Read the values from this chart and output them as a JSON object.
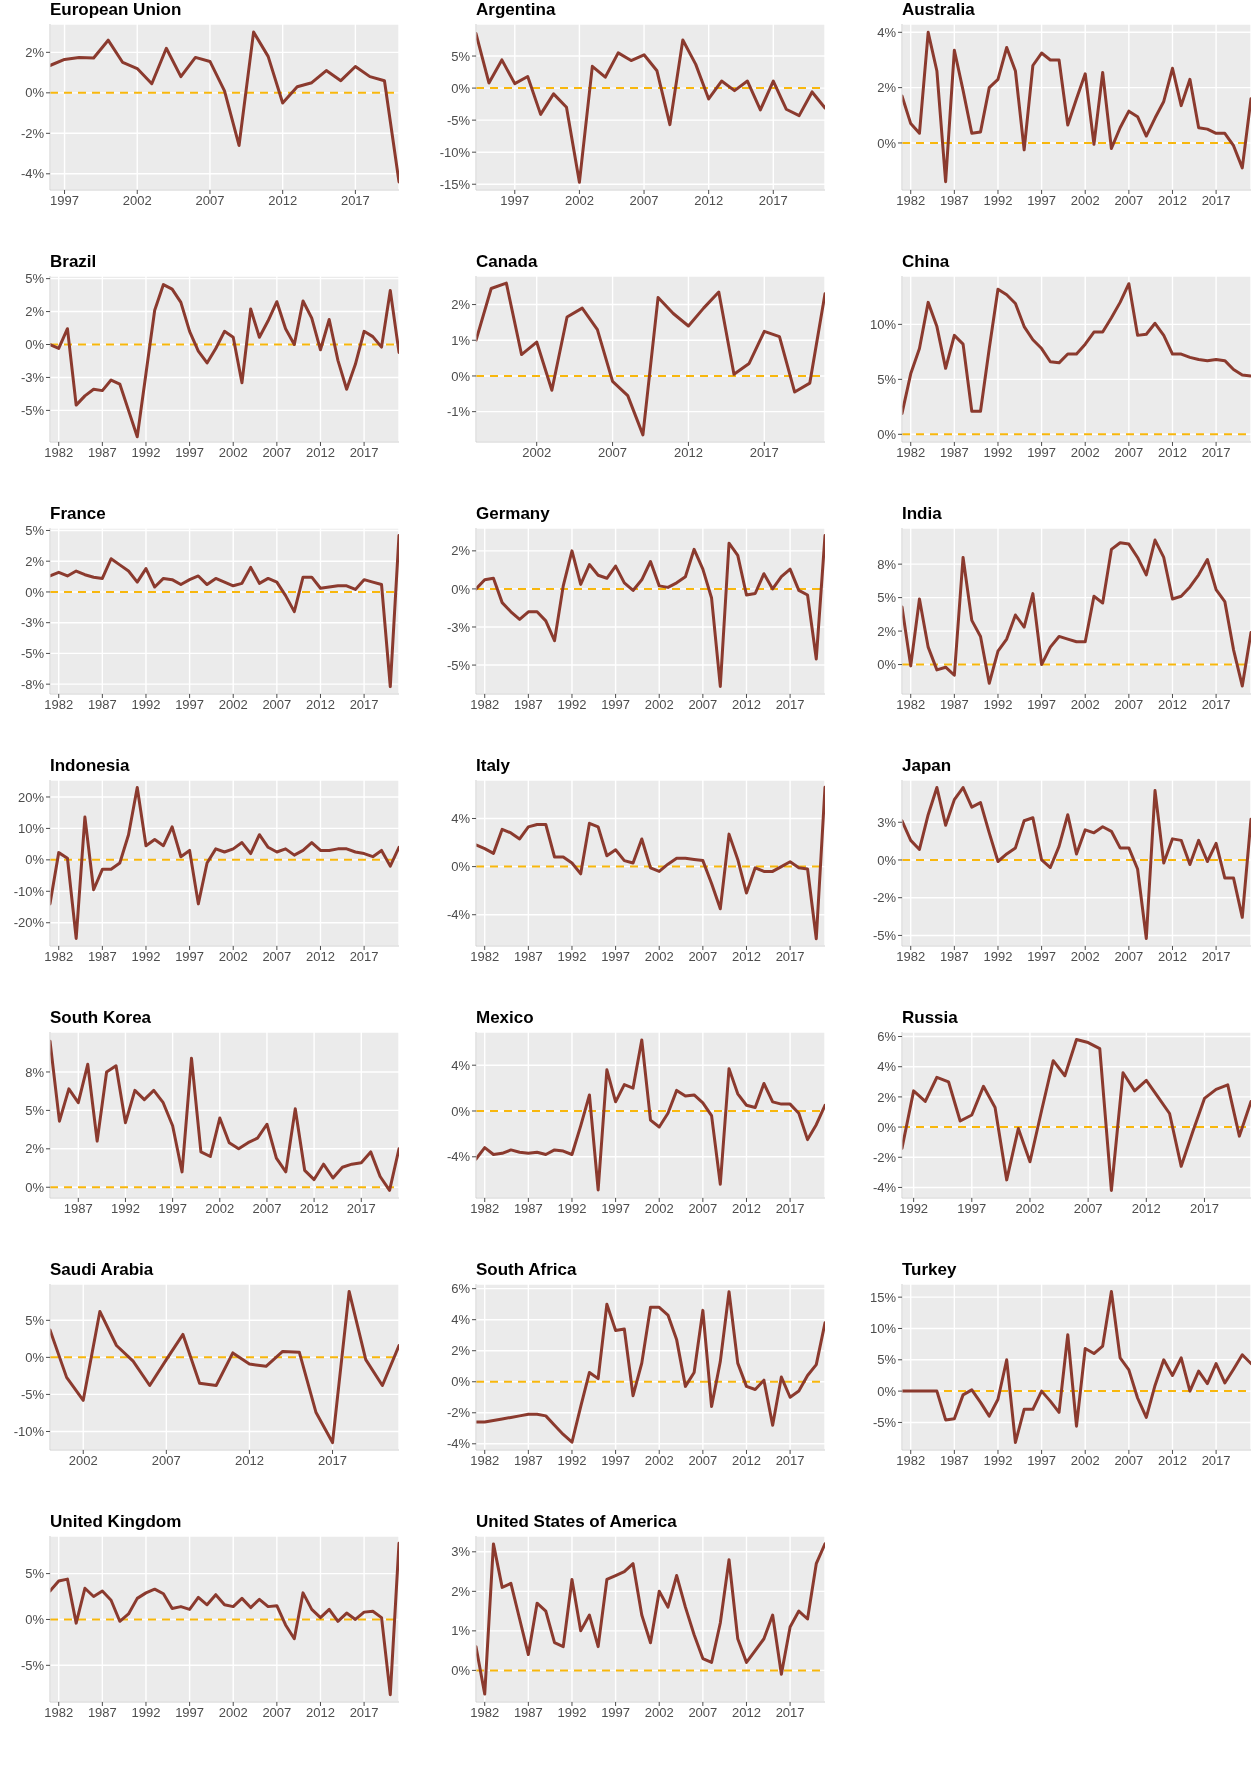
{
  "chart_data": [
    {
      "type": "line",
      "title": "European Union",
      "x": [
        1996,
        1997,
        1998,
        1999,
        2000,
        2001,
        2002,
        2003,
        2004,
        2005,
        2006,
        2007,
        2008,
        2009,
        2010,
        2011,
        2012,
        2013,
        2014,
        2015,
        2016,
        2017,
        2018,
        2019,
        2020
      ],
      "values": [
        1.35,
        1.65,
        1.75,
        1.72,
        2.6,
        1.5,
        1.2,
        0.45,
        2.2,
        0.8,
        1.75,
        1.55,
        0.1,
        -2.6,
        3.0,
        1.8,
        -0.5,
        0.3,
        0.5,
        1.1,
        0.6,
        1.3,
        0.8,
        0.6,
        -4.4
      ],
      "color": "#8b3a2e",
      "xlim": [
        1996,
        2020
      ],
      "xticks": [
        1997,
        2002,
        2007,
        2012,
        2017
      ],
      "ylim": [
        -4.8,
        3.4
      ],
      "yticks": [
        {
          "value": 2,
          "label": "2%"
        },
        {
          "value": 0,
          "label": "0%"
        },
        {
          "value": -2,
          "label": "-2%"
        },
        {
          "value": -4,
          "label": "-4%"
        }
      ],
      "grid": true,
      "ref_lines": [
        {
          "axis": "y",
          "value": 0,
          "color": "#f8b70d",
          "line_style": "dashed"
        }
      ]
    },
    {
      "type": "line",
      "title": "Argentina",
      "x": [
        1994,
        1995,
        1996,
        1997,
        1998,
        1999,
        2000,
        2001,
        2002,
        2003,
        2004,
        2005,
        2006,
        2007,
        2008,
        2009,
        2010,
        2011,
        2012,
        2013,
        2014,
        2015,
        2016,
        2017,
        2018,
        2019,
        2020,
        2021
      ],
      "values": [
        8.5,
        0.8,
        4.4,
        0.7,
        1.8,
        -4.1,
        -0.9,
        -3.0,
        -14.7,
        3.4,
        1.7,
        5.5,
        4.3,
        5.2,
        2.7,
        -5.7,
        7.5,
        3.7,
        -1.7,
        1.1,
        -0.4,
        1.1,
        -3.4,
        1.1,
        -3.3,
        -4.3,
        -0.6,
        -3.1
      ],
      "color": "#8b3a2e",
      "xlim": [
        1994,
        2021
      ],
      "xticks": [
        1997,
        2002,
        2007,
        2012,
        2017
      ],
      "ylim": [
        -15.9,
        10
      ],
      "yticks": [
        {
          "value": 5,
          "label": "5%"
        },
        {
          "value": 0,
          "label": "0%"
        },
        {
          "value": -5,
          "label": "-5%"
        },
        {
          "value": -10,
          "label": "-10%"
        },
        {
          "value": -15,
          "label": "-15%"
        }
      ],
      "grid": true,
      "ref_lines": [
        {
          "axis": "y",
          "value": 0,
          "color": "#f8b70d",
          "line_style": "dashed"
        }
      ]
    },
    {
      "type": "line",
      "title": "Australia",
      "x": [
        1981,
        1982,
        1983,
        1984,
        1985,
        1986,
        1987,
        1988,
        1989,
        1990,
        1991,
        1992,
        1993,
        1994,
        1995,
        1996,
        1997,
        1998,
        1999,
        2000,
        2001,
        2002,
        2003,
        2004,
        2005,
        2006,
        2007,
        2008,
        2009,
        2010,
        2011,
        2012,
        2013,
        2014,
        2015,
        2016,
        2017,
        2018,
        2019,
        2020,
        2021
      ],
      "values": [
        1.7,
        0.7,
        0.35,
        4.0,
        2.6,
        -1.4,
        3.35,
        1.9,
        0.35,
        0.4,
        2.0,
        2.3,
        3.45,
        2.6,
        -0.25,
        2.8,
        3.25,
        3.0,
        3.0,
        0.65,
        1.6,
        2.5,
        -0.05,
        2.55,
        -0.2,
        0.55,
        1.15,
        0.95,
        0.25,
        0.9,
        1.5,
        2.7,
        1.35,
        2.3,
        0.55,
        0.5,
        0.35,
        0.35,
        -0.1,
        -0.9,
        1.6
      ],
      "color": "#8b3a2e",
      "xlim": [
        1981,
        2021
      ],
      "xticks": [
        1982,
        1987,
        1992,
        1997,
        2002,
        2007,
        2012,
        2017
      ],
      "ylim": [
        -1.7,
        4.3
      ],
      "yticks": [
        {
          "value": 4,
          "label": "4%"
        },
        {
          "value": 2,
          "label": "2%"
        },
        {
          "value": 0,
          "label": "0%"
        }
      ],
      "grid": true,
      "ref_lines": [
        {
          "axis": "y",
          "value": 0,
          "color": "#f8b70d",
          "line_style": "dashed"
        }
      ]
    },
    {
      "type": "line",
      "title": "Brazil",
      "x": [
        1981,
        1982,
        1983,
        1984,
        1985,
        1986,
        1987,
        1988,
        1989,
        1990,
        1991,
        1992,
        1993,
        1994,
        1995,
        1996,
        1997,
        1998,
        1999,
        2000,
        2001,
        2002,
        2003,
        2004,
        2005,
        2006,
        2007,
        2008,
        2009,
        2010,
        2011,
        2012,
        2013,
        2014,
        2015,
        2016,
        2017,
        2018,
        2019,
        2020,
        2021
      ],
      "values": [
        0,
        -0.3,
        1.2,
        -4.6,
        -3.9,
        -3.4,
        -3.5,
        -2.7,
        -3.0,
        -5.0,
        -7.0,
        -2.2,
        2.6,
        4.55,
        4.2,
        3.2,
        1.0,
        -0.5,
        -1.4,
        -0.3,
        1.0,
        0.55,
        -2.9,
        2.7,
        0.55,
        1.8,
        3.25,
        1.2,
        0,
        3.3,
        2.0,
        -0.4,
        1.9,
        -1.2,
        -3.4,
        -1.5,
        1.0,
        0.6,
        -0.2,
        4.1,
        -0.6
      ],
      "color": "#8b3a2e",
      "xlim": [
        1981,
        2021
      ],
      "xticks": [
        1982,
        1987,
        1992,
        1997,
        2002,
        2007,
        2012,
        2017
      ],
      "ylim": [
        -7.4,
        5.2
      ],
      "yticks": [
        {
          "value": 5,
          "label": "5%"
        },
        {
          "value": 2.5,
          "label": "2%"
        },
        {
          "value": 0,
          "label": "0%"
        },
        {
          "value": -2.5,
          "label": "-3%"
        },
        {
          "value": -5,
          "label": "-5%"
        }
      ],
      "grid": true,
      "ref_lines": [
        {
          "axis": "y",
          "value": 0,
          "color": "#f8b70d",
          "line_style": "dashed"
        }
      ]
    },
    {
      "type": "line",
      "title": "Canada",
      "x": [
        1998,
        1999,
        2000,
        2001,
        2002,
        2003,
        2004,
        2005,
        2006,
        2007,
        2008,
        2009,
        2010,
        2011,
        2012,
        2013,
        2014,
        2015,
        2016,
        2017,
        2018,
        2019,
        2020,
        2021
      ],
      "values": [
        1.0,
        2.45,
        2.6,
        0.6,
        0.95,
        -0.4,
        1.65,
        1.9,
        1.3,
        -0.15,
        -0.55,
        -1.65,
        2.2,
        1.75,
        1.4,
        1.9,
        2.35,
        0.05,
        0.35,
        1.25,
        1.1,
        -0.45,
        -0.2,
        2.3
      ],
      "color": "#8b3a2e",
      "xlim": [
        1998,
        2021
      ],
      "xticks": [
        2002,
        2007,
        2012,
        2017
      ],
      "ylim": [
        -1.85,
        2.8
      ],
      "yticks": [
        {
          "value": 2,
          "label": "2%"
        },
        {
          "value": 1,
          "label": "1%"
        },
        {
          "value": 0,
          "label": "0%"
        },
        {
          "value": -1,
          "label": "-1%"
        }
      ],
      "grid": true,
      "ref_lines": [
        {
          "axis": "y",
          "value": 0,
          "color": "#f8b70d",
          "line_style": "dashed"
        }
      ]
    },
    {
      "type": "line",
      "title": "China",
      "x": [
        1981,
        1982,
        1983,
        1984,
        1985,
        1986,
        1987,
        1988,
        1989,
        1990,
        1991,
        1992,
        1993,
        1994,
        1995,
        1996,
        1997,
        1998,
        1999,
        2000,
        2001,
        2002,
        2003,
        2004,
        2005,
        2006,
        2007,
        2008,
        2009,
        2010,
        2011,
        2012,
        2013,
        2014,
        2015,
        2016,
        2017,
        2018,
        2019,
        2020,
        2021
      ],
      "values": [
        1.9,
        5.5,
        7.8,
        12.0,
        9.8,
        6.0,
        9.0,
        8.2,
        2.1,
        2.1,
        7.8,
        13.2,
        12.7,
        11.9,
        9.8,
        8.6,
        7.8,
        6.6,
        6.5,
        7.3,
        7.3,
        8.2,
        9.3,
        9.3,
        10.6,
        12.0,
        13.7,
        9.0,
        9.1,
        10.1,
        9.0,
        7.3,
        7.3,
        7.0,
        6.8,
        6.7,
        6.8,
        6.7,
        5.9,
        5.4,
        5.3
      ],
      "color": "#8b3a2e",
      "xlim": [
        1981,
        2021
      ],
      "xticks": [
        1982,
        1987,
        1992,
        1997,
        2002,
        2007,
        2012,
        2017
      ],
      "ylim": [
        -0.7,
        14.4
      ],
      "yticks": [
        {
          "value": 10,
          "label": "10%"
        },
        {
          "value": 5,
          "label": "5%"
        },
        {
          "value": 0,
          "label": "0%"
        }
      ],
      "grid": true,
      "ref_lines": [
        {
          "axis": "y",
          "value": 0,
          "color": "#f8b70d",
          "line_style": "dashed"
        }
      ]
    },
    {
      "type": "line",
      "title": "France",
      "x": [
        1981,
        1982,
        1983,
        1984,
        1985,
        1986,
        1987,
        1988,
        1989,
        1990,
        1991,
        1992,
        1993,
        1994,
        1995,
        1996,
        1997,
        1998,
        1999,
        2000,
        2001,
        2002,
        2003,
        2004,
        2005,
        2006,
        2007,
        2008,
        2009,
        2010,
        2011,
        2012,
        2013,
        2014,
        2015,
        2016,
        2017,
        2018,
        2019,
        2020,
        2021
      ],
      "values": [
        1.3,
        1.6,
        1.3,
        1.7,
        1.4,
        1.2,
        1.1,
        2.7,
        2.2,
        1.7,
        0.8,
        1.9,
        0.4,
        1.1,
        1.0,
        0.6,
        1.0,
        1.3,
        0.6,
        1.1,
        0.8,
        0.5,
        0.7,
        2.0,
        0.7,
        1.1,
        0.8,
        -0.3,
        -1.6,
        1.2,
        1.2,
        0.3,
        0.4,
        0.5,
        0.5,
        0.2,
        1.0,
        0.8,
        0.6,
        -7.7,
        4.6
      ],
      "color": "#8b3a2e",
      "xlim": [
        1981,
        2021
      ],
      "xticks": [
        1982,
        1987,
        1992,
        1997,
        2002,
        2007,
        2012,
        2017
      ],
      "ylim": [
        -8.3,
        5.2
      ],
      "yticks": [
        {
          "value": 5,
          "label": "5%"
        },
        {
          "value": 2.5,
          "label": "2%"
        },
        {
          "value": 0,
          "label": "0%"
        },
        {
          "value": -2.5,
          "label": "-3%"
        },
        {
          "value": -5,
          "label": "-5%"
        },
        {
          "value": -7.5,
          "label": "-8%"
        }
      ],
      "grid": true,
      "ref_lines": [
        {
          "axis": "y",
          "value": 0,
          "color": "#f8b70d",
          "line_style": "dashed"
        }
      ]
    },
    {
      "type": "line",
      "title": "Germany",
      "x": [
        1981,
        1982,
        1983,
        1984,
        1985,
        1986,
        1987,
        1988,
        1989,
        1990,
        1991,
        1992,
        1993,
        1994,
        1995,
        1996,
        1997,
        1998,
        1999,
        2000,
        2001,
        2002,
        2003,
        2004,
        2005,
        2006,
        2007,
        2008,
        2009,
        2010,
        2011,
        2012,
        2013,
        2014,
        2015,
        2016,
        2017,
        2018,
        2019,
        2020,
        2021
      ],
      "values": [
        0.0,
        0.6,
        0.7,
        -0.9,
        -1.5,
        -2.0,
        -1.5,
        -1.5,
        -2.1,
        -3.4,
        0.2,
        2.5,
        0.3,
        1.6,
        0.9,
        0.7,
        1.5,
        0.4,
        -0.1,
        0.6,
        1.8,
        0.2,
        0.1,
        0.4,
        0.8,
        2.6,
        1.3,
        -0.6,
        -6.4,
        3.0,
        2.2,
        -0.4,
        -0.3,
        1.0,
        0.0,
        0.8,
        1.3,
        -0.1,
        -0.4,
        -4.6,
        3.5
      ],
      "color": "#8b3a2e",
      "xlim": [
        1981,
        2021
      ],
      "xticks": [
        1982,
        1987,
        1992,
        1997,
        2002,
        2007,
        2012,
        2017
      ],
      "ylim": [
        -6.9,
        4.0
      ],
      "yticks": [
        {
          "value": 2.5,
          "label": "2%"
        },
        {
          "value": 0,
          "label": "0%"
        },
        {
          "value": -2.5,
          "label": "-3%"
        },
        {
          "value": -5,
          "label": "-5%"
        }
      ],
      "grid": true,
      "ref_lines": [
        {
          "axis": "y",
          "value": 0,
          "color": "#f8b70d",
          "line_style": "dashed"
        }
      ]
    },
    {
      "type": "line",
      "title": "India",
      "x": [
        1981,
        1982,
        1983,
        1984,
        1985,
        1986,
        1987,
        1988,
        1989,
        1990,
        1991,
        1992,
        1993,
        1994,
        1995,
        1996,
        1997,
        1998,
        1999,
        2000,
        2001,
        2002,
        2003,
        2004,
        2005,
        2006,
        2007,
        2008,
        2009,
        2010,
        2011,
        2012,
        2013,
        2014,
        2015,
        2016,
        2017,
        2018,
        2019,
        2020,
        2021
      ],
      "values": [
        4.3,
        -0.1,
        4.9,
        1.3,
        -0.4,
        -0.2,
        -0.8,
        8.0,
        3.3,
        2.1,
        -1.4,
        1.0,
        1.9,
        3.7,
        2.8,
        5.3,
        0.0,
        1.3,
        2.1,
        1.9,
        1.7,
        1.7,
        5.1,
        4.6,
        8.6,
        9.1,
        9.0,
        8.0,
        6.7,
        9.3,
        8.0,
        4.9,
        5.1,
        5.8,
        6.7,
        7.85,
        5.6,
        4.7,
        1.1,
        -1.6,
        2.4
      ],
      "color": "#8b3a2e",
      "xlim": [
        1981,
        2021
      ],
      "xticks": [
        1982,
        1987,
        1992,
        1997,
        2002,
        2007,
        2012,
        2017
      ],
      "ylim": [
        -2.2,
        10.2
      ],
      "yticks": [
        {
          "value": 7.5,
          "label": "8%"
        },
        {
          "value": 5,
          "label": "5%"
        },
        {
          "value": 2.5,
          "label": "2%"
        },
        {
          "value": 0,
          "label": "0%"
        }
      ],
      "grid": true,
      "ref_lines": [
        {
          "axis": "y",
          "value": 0,
          "color": "#f8b70d",
          "line_style": "dashed"
        }
      ]
    },
    {
      "type": "line",
      "title": "Indonesia",
      "x": [
        1981,
        1982,
        1983,
        1984,
        1985,
        1986,
        1987,
        1988,
        1989,
        1990,
        1991,
        1992,
        1993,
        1994,
        1995,
        1996,
        1997,
        1998,
        1999,
        2000,
        2001,
        2002,
        2003,
        2004,
        2005,
        2006,
        2007,
        2008,
        2009,
        2010,
        2011,
        2012,
        2013,
        2014,
        2015,
        2016,
        2017,
        2018,
        2019,
        2020,
        2021
      ],
      "values": [
        -14,
        2.3,
        0.5,
        -25,
        13.6,
        -9.5,
        -3,
        -3,
        -1,
        8,
        23,
        4.5,
        6.5,
        4.5,
        10.5,
        1,
        3,
        -14,
        -1,
        3.5,
        2.5,
        3.5,
        5.5,
        2,
        8,
        4,
        2.5,
        3.5,
        1.5,
        3,
        5.5,
        3,
        3,
        3.5,
        3.5,
        2.5,
        2,
        1,
        3,
        -2,
        4
      ],
      "color": "#8b3a2e",
      "xlim": [
        1981,
        2021
      ],
      "xticks": [
        1982,
        1987,
        1992,
        1997,
        2002,
        2007,
        2012,
        2017
      ],
      "ylim": [
        -27.4,
        25.4
      ],
      "yticks": [
        {
          "value": 20,
          "label": "20%"
        },
        {
          "value": 10,
          "label": "10%"
        },
        {
          "value": 0,
          "label": "0%"
        },
        {
          "value": -10,
          "label": "-10%"
        },
        {
          "value": -20,
          "label": "-20%"
        }
      ],
      "grid": true,
      "ref_lines": [
        {
          "axis": "y",
          "value": 0,
          "color": "#f8b70d",
          "line_style": "dashed"
        }
      ]
    },
    {
      "type": "line",
      "title": "Italy",
      "x": [
        1981,
        1982,
        1983,
        1984,
        1985,
        1986,
        1987,
        1988,
        1989,
        1990,
        1991,
        1992,
        1993,
        1994,
        1995,
        1996,
        1997,
        1998,
        1999,
        2000,
        2001,
        2002,
        2003,
        2004,
        2005,
        2006,
        2007,
        2008,
        2009,
        2010,
        2011,
        2012,
        2013,
        2014,
        2015,
        2016,
        2017,
        2018,
        2019,
        2020,
        2021
      ],
      "values": [
        1.8,
        1.5,
        1.1,
        3.1,
        2.8,
        2.3,
        3.3,
        3.5,
        3.5,
        0.8,
        0.8,
        0.3,
        -0.6,
        3.6,
        3.3,
        0.9,
        1.4,
        0.5,
        0.3,
        2.3,
        -0.1,
        -0.4,
        0.2,
        0.7,
        0.7,
        0.6,
        0.5,
        -1.4,
        -3.5,
        2.7,
        0.6,
        -2.2,
        -0.1,
        -0.4,
        -0.4,
        0.0,
        0.4,
        -0.1,
        -0.2,
        -6.0,
        6.6
      ],
      "color": "#8b3a2e",
      "xlim": [
        1981,
        2021
      ],
      "xticks": [
        1982,
        1987,
        1992,
        1997,
        2002,
        2007,
        2012,
        2017
      ],
      "ylim": [
        -6.6,
        7.2
      ],
      "yticks": [
        {
          "value": 4,
          "label": "4%"
        },
        {
          "value": 0,
          "label": "0%"
        },
        {
          "value": -4,
          "label": "-4%"
        }
      ],
      "grid": true,
      "ref_lines": [
        {
          "axis": "y",
          "value": 0,
          "color": "#f8b70d",
          "line_style": "dashed"
        }
      ]
    },
    {
      "type": "line",
      "title": "Japan",
      "x": [
        1981,
        1982,
        1983,
        1984,
        1985,
        1986,
        1987,
        1988,
        1989,
        1990,
        1991,
        1992,
        1993,
        1994,
        1995,
        1996,
        1997,
        1998,
        1999,
        2000,
        2001,
        2002,
        2003,
        2004,
        2005,
        2006,
        2007,
        2008,
        2009,
        2010,
        2011,
        2012,
        2013,
        2014,
        2015,
        2016,
        2017,
        2018,
        2019,
        2020,
        2021
      ],
      "values": [
        2.6,
        1.3,
        0.7,
        3.0,
        4.8,
        2.3,
        4.0,
        4.8,
        3.5,
        3.8,
        1.8,
        -0.1,
        0.4,
        0.8,
        2.6,
        2.8,
        0.0,
        -0.5,
        0.9,
        3.0,
        0.4,
        2.0,
        1.8,
        2.2,
        1.9,
        0.8,
        0.8,
        -0.6,
        -5.2,
        4.6,
        -0.2,
        1.4,
        1.3,
        -0.3,
        1.3,
        -0.1,
        1.1,
        -1.2,
        -1.2,
        -3.8,
        2.7
      ],
      "color": "#8b3a2e",
      "xlim": [
        1981,
        2021
      ],
      "xticks": [
        1982,
        1987,
        1992,
        1997,
        2002,
        2007,
        2012,
        2017
      ],
      "ylim": [
        -5.7,
        5.3
      ],
      "yticks": [
        {
          "value": 2.5,
          "label": "3%"
        },
        {
          "value": 0,
          "label": "0%"
        },
        {
          "value": -2.5,
          "label": "-2%"
        },
        {
          "value": -5,
          "label": "-5%"
        }
      ],
      "grid": true,
      "ref_lines": [
        {
          "axis": "y",
          "value": 0,
          "color": "#f8b70d",
          "line_style": "dashed"
        }
      ]
    },
    {
      "type": "line",
      "title": "South Korea",
      "x": [
        1984,
        1985,
        1986,
        1987,
        1988,
        1989,
        1990,
        1991,
        1992,
        1993,
        1994,
        1995,
        1996,
        1997,
        1998,
        1999,
        2000,
        2001,
        2002,
        2003,
        2004,
        2005,
        2006,
        2007,
        2008,
        2009,
        2010,
        2011,
        2012,
        2013,
        2014,
        2015,
        2016,
        2017,
        2018,
        2019,
        2020,
        2021
      ],
      "values": [
        9.5,
        4.3,
        6.4,
        5.5,
        8.0,
        3.0,
        7.5,
        7.9,
        4.2,
        6.3,
        5.7,
        6.3,
        5.5,
        4.0,
        1.0,
        8.4,
        2.3,
        2.0,
        4.5,
        2.9,
        2.5,
        2.9,
        3.2,
        4.1,
        1.9,
        1.0,
        5.1,
        1.1,
        0.5,
        1.5,
        0.6,
        1.3,
        1.5,
        1.6,
        2.3,
        0.7,
        -0.2,
        2.5
      ],
      "color": "#8b3a2e",
      "xlim": [
        1984,
        2021
      ],
      "xticks": [
        1987,
        1992,
        1997,
        2002,
        2007,
        2012,
        2017
      ],
      "ylim": [
        -0.7,
        10.1
      ],
      "yticks": [
        {
          "value": 7.5,
          "label": "8%"
        },
        {
          "value": 5,
          "label": "5%"
        },
        {
          "value": 2.5,
          "label": "2%"
        },
        {
          "value": 0,
          "label": "0%"
        }
      ],
      "grid": true,
      "ref_lines": [
        {
          "axis": "y",
          "value": 0,
          "color": "#f8b70d",
          "line_style": "dashed"
        }
      ]
    },
    {
      "type": "line",
      "title": "Mexico",
      "x": [
        1981,
        1982,
        1983,
        1984,
        1985,
        1986,
        1987,
        1988,
        1989,
        1990,
        1991,
        1992,
        1993,
        1994,
        1995,
        1996,
        1997,
        1998,
        1999,
        2000,
        2001,
        2002,
        2003,
        2004,
        2005,
        2006,
        2007,
        2008,
        2009,
        2010,
        2011,
        2012,
        2013,
        2014,
        2015,
        2016,
        2017,
        2018,
        2019,
        2020,
        2021
      ],
      "values": [
        -4.2,
        -3.2,
        -3.8,
        -3.7,
        -3.4,
        -3.6,
        -3.7,
        -3.6,
        -3.8,
        -3.4,
        -3.5,
        -3.8,
        -1.3,
        1.4,
        -6.9,
        3.6,
        0.8,
        2.3,
        2.0,
        6.2,
        -0.8,
        -1.4,
        -0.2,
        1.8,
        1.3,
        1.4,
        0.7,
        -0.4,
        -6.4,
        3.7,
        1.5,
        0.5,
        0.3,
        2.4,
        0.8,
        0.6,
        0.6,
        -0.2,
        -2.5,
        -1.2,
        0.5
      ],
      "color": "#8b3a2e",
      "xlim": [
        1981,
        2021
      ],
      "xticks": [
        1982,
        1987,
        1992,
        1997,
        2002,
        2007,
        2012,
        2017
      ],
      "ylim": [
        -7.6,
        6.9
      ],
      "yticks": [
        {
          "value": 4,
          "label": "4%"
        },
        {
          "value": 0,
          "label": "0%"
        },
        {
          "value": -4,
          "label": "-4%"
        }
      ],
      "grid": true,
      "ref_lines": [
        {
          "axis": "y",
          "value": 0,
          "color": "#f8b70d",
          "line_style": "dashed"
        }
      ]
    },
    {
      "type": "line",
      "title": "Russia",
      "x": [
        1991,
        1992,
        1993,
        1994,
        1995,
        1996,
        1997,
        1998,
        1999,
        2000,
        2001,
        2002,
        2003,
        2004,
        2005,
        2006,
        2007,
        2008,
        2009,
        2010,
        2011,
        2012,
        2013,
        2014,
        2015,
        2016,
        2017,
        2018,
        2019,
        2020,
        2021
      ],
      "values": [
        -1.4,
        2.4,
        1.7,
        3.3,
        3.0,
        0.4,
        0.8,
        2.7,
        1.3,
        -3.5,
        -0.1,
        -2.3,
        1.1,
        4.4,
        3.4,
        5.8,
        5.6,
        5.2,
        -4.2,
        3.6,
        2.4,
        3.1,
        2.0,
        0.9,
        -2.6,
        -0.3,
        1.9,
        2.5,
        2.8,
        -0.6,
        1.7
      ],
      "color": "#8b3a2e",
      "xlim": [
        1991,
        2021
      ],
      "xticks": [
        1992,
        1997,
        2002,
        2007,
        2012,
        2017
      ],
      "ylim": [
        -4.7,
        6.3
      ],
      "yticks": [
        {
          "value": 6,
          "label": "6%"
        },
        {
          "value": 4,
          "label": "4%"
        },
        {
          "value": 2,
          "label": "2%"
        },
        {
          "value": 0,
          "label": "0%"
        },
        {
          "value": -2,
          "label": "-2%"
        },
        {
          "value": -4,
          "label": "-4%"
        }
      ],
      "grid": true,
      "ref_lines": [
        {
          "axis": "y",
          "value": 0,
          "color": "#f8b70d",
          "line_style": "dashed"
        }
      ]
    },
    {
      "type": "line",
      "title": "Saudi Arabia",
      "x": [
        2000,
        2001,
        2002,
        2003,
        2004,
        2005,
        2006,
        2007,
        2008,
        2009,
        2010,
        2011,
        2012,
        2013,
        2014,
        2015,
        2016,
        2017,
        2018,
        2019,
        2020,
        2021
      ],
      "values": [
        3.7,
        -2.7,
        -5.8,
        6.2,
        1.6,
        -0.5,
        -3.8,
        -0.3,
        3.1,
        -3.5,
        -3.8,
        0.6,
        -0.9,
        -1.2,
        0.8,
        0.7,
        -7.4,
        -11.5,
        8.9,
        -0.3,
        -3.8,
        1.6
      ],
      "color": "#8b3a2e",
      "xlim": [
        2000,
        2021
      ],
      "xticks": [
        2002,
        2007,
        2012,
        2017
      ],
      "ylim": [
        -12.5,
        9.9
      ],
      "yticks": [
        {
          "value": 5,
          "label": "5%"
        },
        {
          "value": 0,
          "label": "0%"
        },
        {
          "value": -5,
          "label": "-5%"
        },
        {
          "value": -10,
          "label": "-10%"
        }
      ],
      "grid": true,
      "ref_lines": [
        {
          "axis": "y",
          "value": 0,
          "color": "#f8b70d",
          "line_style": "dashed"
        }
      ]
    },
    {
      "type": "line",
      "title": "South Africa",
      "x": [
        1981,
        1982,
        1983,
        1984,
        1985,
        1986,
        1987,
        1988,
        1989,
        1990,
        1991,
        1992,
        1993,
        1994,
        1995,
        1996,
        1997,
        1998,
        1999,
        2000,
        2001,
        2002,
        2003,
        2004,
        2005,
        2006,
        2007,
        2008,
        2009,
        2010,
        2011,
        2012,
        2013,
        2014,
        2015,
        2016,
        2017,
        2018,
        2019,
        2020,
        2021
      ],
      "values": [
        -2.6,
        -2.6,
        -2.5,
        -2.4,
        -2.3,
        -2.2,
        -2.1,
        -2.1,
        -2.2,
        -2.8,
        -3.4,
        -3.9,
        -1.6,
        0.6,
        0.2,
        5.0,
        3.3,
        3.4,
        -0.9,
        1.2,
        4.8,
        4.8,
        4.3,
        2.7,
        -0.3,
        0.6,
        4.6,
        -1.6,
        1.3,
        5.8,
        1.2,
        -0.3,
        -0.5,
        0.1,
        -2.8,
        0.3,
        -1.0,
        -0.6,
        0.4,
        1.1,
        3.8
      ],
      "color": "#8b3a2e",
      "xlim": [
        1981,
        2021
      ],
      "xticks": [
        1982,
        1987,
        1992,
        1997,
        2002,
        2007,
        2012,
        2017
      ],
      "ylim": [
        -4.4,
        6.3
      ],
      "yticks": [
        {
          "value": 6,
          "label": "6%"
        },
        {
          "value": 4,
          "label": "4%"
        },
        {
          "value": 2,
          "label": "2%"
        },
        {
          "value": 0,
          "label": "0%"
        },
        {
          "value": -2,
          "label": "-2%"
        },
        {
          "value": -4,
          "label": "-4%"
        }
      ],
      "grid": true,
      "ref_lines": [
        {
          "axis": "y",
          "value": 0,
          "color": "#f8b70d",
          "line_style": "dashed"
        }
      ]
    },
    {
      "type": "line",
      "title": "Turkey",
      "x": [
        1981,
        1982,
        1983,
        1984,
        1985,
        1986,
        1987,
        1988,
        1989,
        1990,
        1991,
        1992,
        1993,
        1994,
        1995,
        1996,
        1997,
        1998,
        1999,
        2000,
        2001,
        2002,
        2003,
        2004,
        2005,
        2006,
        2007,
        2008,
        2009,
        2010,
        2011,
        2012,
        2013,
        2014,
        2015,
        2016,
        2017,
        2018,
        2019,
        2020,
        2021
      ],
      "values": [
        0,
        0,
        0,
        0,
        0,
        -4.6,
        -4.4,
        -0.6,
        0.2,
        -1.8,
        -4.0,
        -1.3,
        5.0,
        -8.2,
        -2.9,
        -2.9,
        0.0,
        -1.6,
        -3.4,
        9.0,
        -5.6,
        6.8,
        6.0,
        7.2,
        15.9,
        5.3,
        3.4,
        -1.1,
        -4.2,
        0.9,
        5.0,
        2.5,
        5.3,
        0.0,
        3.2,
        1.2,
        4.4,
        1.3,
        3.5,
        5.8,
        4.4
      ],
      "color": "#8b3a2e",
      "xlim": [
        1981,
        2021
      ],
      "xticks": [
        1982,
        1987,
        1992,
        1997,
        2002,
        2007,
        2012,
        2017
      ],
      "ylim": [
        -9.4,
        17.1
      ],
      "yticks": [
        {
          "value": 15,
          "label": "15%"
        },
        {
          "value": 10,
          "label": "10%"
        },
        {
          "value": 5,
          "label": "5%"
        },
        {
          "value": 0,
          "label": "0%"
        },
        {
          "value": -5,
          "label": "-5%"
        }
      ],
      "grid": true,
      "ref_lines": [
        {
          "axis": "y",
          "value": 0,
          "color": "#f8b70d",
          "line_style": "dashed"
        }
      ]
    },
    {
      "type": "line",
      "title": "United Kingdom",
      "x": [
        1981,
        1982,
        1983,
        1984,
        1985,
        1986,
        1987,
        1988,
        1989,
        1990,
        1991,
        1992,
        1993,
        1994,
        1995,
        1996,
        1997,
        1998,
        1999,
        2000,
        2001,
        2002,
        2003,
        2004,
        2005,
        2006,
        2007,
        2008,
        2009,
        2010,
        2011,
        2012,
        2013,
        2014,
        2015,
        2016,
        2017,
        2018,
        2019,
        2020,
        2021
      ],
      "values": [
        3.1,
        4.2,
        4.4,
        -0.4,
        3.4,
        2.5,
        3.1,
        2.1,
        -0.2,
        0.6,
        2.3,
        2.9,
        3.3,
        2.8,
        1.2,
        1.4,
        1.1,
        2.4,
        1.6,
        2.7,
        1.6,
        1.4,
        2.3,
        1.3,
        2.2,
        1.4,
        1.5,
        -0.6,
        -2.1,
        2.9,
        1.1,
        0.2,
        1.1,
        -0.2,
        0.7,
        0.0,
        0.8,
        0.9,
        0.2,
        -8.2,
        8.3
      ],
      "color": "#8b3a2e",
      "xlim": [
        1981,
        2021
      ],
      "xticks": [
        1982,
        1987,
        1992,
        1997,
        2002,
        2007,
        2012,
        2017
      ],
      "ylim": [
        -9.0,
        9.1
      ],
      "yticks": [
        {
          "value": 5,
          "label": "5%"
        },
        {
          "value": 0,
          "label": "0%"
        },
        {
          "value": -5,
          "label": "-5%"
        }
      ],
      "grid": true,
      "ref_lines": [
        {
          "axis": "y",
          "value": 0,
          "color": "#f8b70d",
          "line_style": "dashed"
        }
      ]
    },
    {
      "type": "line",
      "title": "United States of America",
      "x": [
        1981,
        1982,
        1983,
        1984,
        1985,
        1986,
        1987,
        1988,
        1989,
        1990,
        1991,
        1992,
        1993,
        1994,
        1995,
        1996,
        1997,
        1998,
        1999,
        2000,
        2001,
        2002,
        2003,
        2004,
        2005,
        2006,
        2007,
        2008,
        2009,
        2010,
        2011,
        2012,
        2013,
        2014,
        2015,
        2016,
        2017,
        2018,
        2019,
        2020,
        2021
      ],
      "values": [
        0.6,
        -0.6,
        3.2,
        2.1,
        2.2,
        1.3,
        0.4,
        1.7,
        1.5,
        0.7,
        0.6,
        2.3,
        1.0,
        1.4,
        0.6,
        2.3,
        2.4,
        2.5,
        2.7,
        1.4,
        0.7,
        2.0,
        1.6,
        2.4,
        1.6,
        0.9,
        0.3,
        0.2,
        1.2,
        2.8,
        0.8,
        0.2,
        0.5,
        0.8,
        1.4,
        -0.1,
        1.1,
        1.5,
        1.3,
        2.7,
        3.2
      ],
      "color": "#8b3a2e",
      "xlim": [
        1981,
        2021
      ],
      "xticks": [
        1982,
        1987,
        1992,
        1997,
        2002,
        2007,
        2012,
        2017
      ],
      "ylim": [
        -0.8,
        3.4
      ],
      "yticks": [
        {
          "value": 3,
          "label": "3%"
        },
        {
          "value": 2,
          "label": "2%"
        },
        {
          "value": 1,
          "label": "1%"
        },
        {
          "value": 0,
          "label": "0%"
        }
      ],
      "grid": true,
      "ref_lines": [
        {
          "axis": "y",
          "value": 0,
          "color": "#f8b70d",
          "line_style": "dashed"
        }
      ]
    }
  ]
}
